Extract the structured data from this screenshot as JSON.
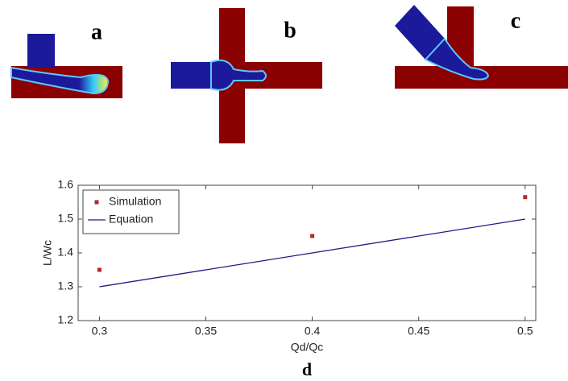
{
  "panels": [
    "a",
    "b",
    "c"
  ],
  "chart_data": {
    "type": "scatter",
    "label": "d",
    "x_label": "Qd/Qc",
    "y_label": "L/Wc",
    "x": [
      0.3,
      0.4,
      0.5
    ],
    "series": [
      {
        "name": "Simulation",
        "color": "#b5262a",
        "values": [
          1.35,
          1.45,
          1.565
        ]
      },
      {
        "name": "Equation",
        "type": "line",
        "color": "#1c1c86",
        "values": [
          1.3,
          1.4,
          1.5
        ]
      }
    ],
    "xlim": [
      0.29,
      0.505
    ],
    "ylim": [
      1.2,
      1.6
    ],
    "xticks": [
      0.3,
      0.35,
      0.4,
      0.45,
      0.5
    ],
    "yticks": [
      1.2,
      1.3,
      1.4,
      1.5,
      1.6
    ],
    "legend": "upper left"
  }
}
